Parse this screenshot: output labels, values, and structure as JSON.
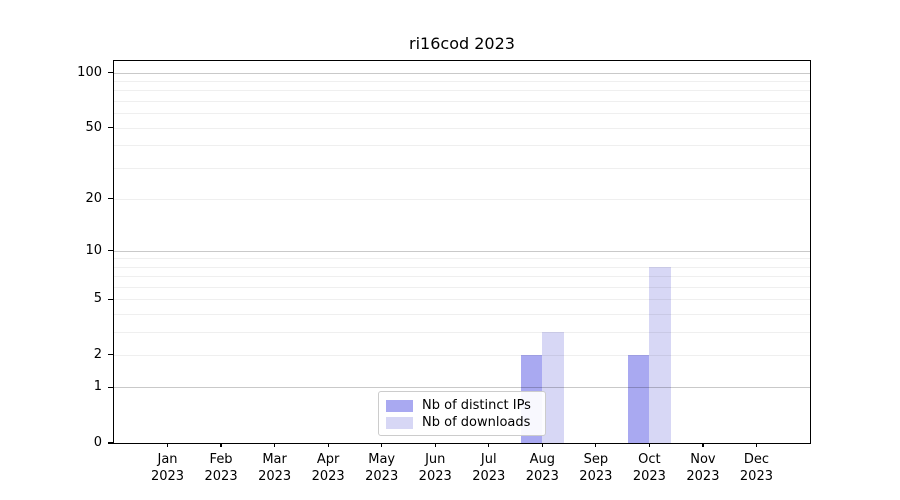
{
  "chart_data": {
    "type": "bar",
    "title": "ri16cod 2023",
    "categories": [
      "Jan",
      "Feb",
      "Mar",
      "Apr",
      "May",
      "Jun",
      "Jul",
      "Aug",
      "Sep",
      "Oct",
      "Nov",
      "Dec"
    ],
    "year": "2023",
    "series": [
      {
        "name": "Nb of distinct IPs",
        "color": "#a9a9f1",
        "values": [
          0,
          0,
          0,
          0,
          0,
          0,
          0,
          2,
          0,
          2,
          0,
          0
        ]
      },
      {
        "name": "Nb of downloads",
        "color": "#d7d7f5",
        "values": [
          0,
          0,
          0,
          0,
          0,
          0,
          0,
          3,
          0,
          8,
          0,
          0
        ]
      }
    ],
    "y_scale": "log1p",
    "ylim": [
      0,
      116
    ],
    "y_ticks": [
      0,
      1,
      2,
      5,
      10,
      20,
      50,
      100
    ],
    "gridlines_minor": [
      2,
      3,
      4,
      5,
      6,
      7,
      8,
      9,
      20,
      30,
      40,
      50,
      60,
      70,
      80,
      90
    ],
    "gridlines_major": [
      1,
      10,
      100
    ],
    "grid": true,
    "legend_position": "lower center",
    "bar_group_width_fraction": 0.8
  },
  "colors": {
    "grid_minor": "#efefef",
    "grid_major": "#c9c9c9",
    "axis": "#000000",
    "legend_border": "#cccccc",
    "legend_bg": "#ffffff",
    "background": "#ffffff",
    "text": "#000000"
  }
}
